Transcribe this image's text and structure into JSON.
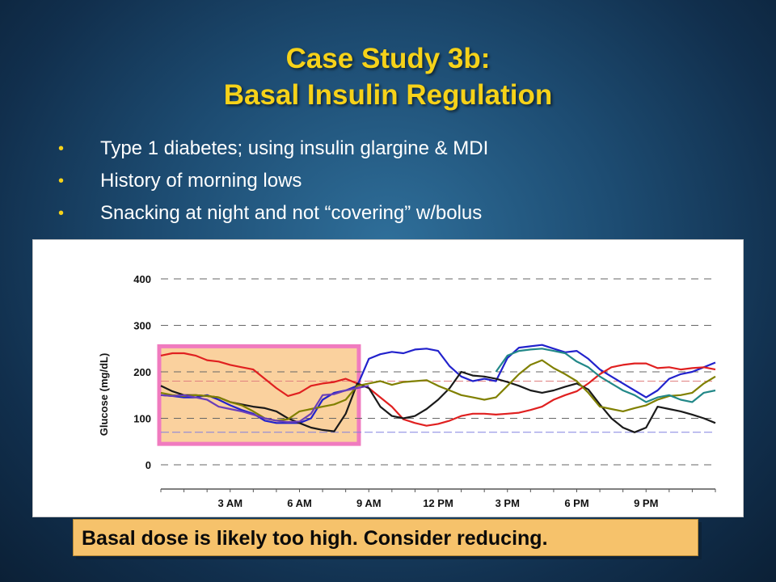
{
  "slide": {
    "title_line1": "Case Study 3b:",
    "title_line2": "Basal Insulin Regulation",
    "bullets": [
      "Type 1 diabetes; using insulin glargine & MDI",
      "History of morning lows",
      "Snacking at night and not “covering” w/bolus"
    ],
    "callout": "Basal dose is likely too high.  Consider reducing.",
    "colors": {
      "title": "#f6d219",
      "callout_bg": "#f6c26b",
      "highlight_box": "#f07bbf",
      "highlight_fill": "#f9c98d"
    }
  },
  "chart_data": {
    "type": "line",
    "ylabel": "Glucose (mg/dL)",
    "xlabel": "",
    "ylim": [
      0,
      400
    ],
    "yticks": [
      0,
      100,
      200,
      300,
      400
    ],
    "xlim": [
      0,
      24
    ],
    "xtick_labels": [
      {
        "x": 3,
        "label": "3 AM"
      },
      {
        "x": 6,
        "label": "6 AM"
      },
      {
        "x": 9,
        "label": "9 AM"
      },
      {
        "x": 12,
        "label": "12 PM"
      },
      {
        "x": 15,
        "label": "3 PM"
      },
      {
        "x": 18,
        "label": "6 PM"
      },
      {
        "x": 21,
        "label": "9 PM"
      }
    ],
    "grid": "horizontal dashed",
    "reference_lines": [
      {
        "y": 70,
        "color": "#8080e0"
      },
      {
        "y": 180,
        "color": "#e08080"
      }
    ],
    "highlight_region": {
      "x_start": 0,
      "x_end": 8.5,
      "y_start": 45,
      "y_end": 255
    },
    "series": [
      {
        "color": "#2222cc",
        "points": [
          [
            0,
            150
          ],
          [
            0.5,
            148
          ],
          [
            1,
            145
          ],
          [
            1.5,
            145
          ],
          [
            2,
            150
          ],
          [
            2.5,
            140
          ],
          [
            3,
            128
          ],
          [
            3.5,
            118
          ],
          [
            4,
            110
          ],
          [
            4.5,
            95
          ],
          [
            5,
            90
          ],
          [
            5.5,
            90
          ],
          [
            6,
            90
          ],
          [
            6.5,
            100
          ],
          [
            7,
            140
          ],
          [
            7.5,
            155
          ],
          [
            8,
            160
          ],
          [
            8.5,
            170
          ],
          [
            9,
            228
          ],
          [
            9.5,
            238
          ],
          [
            10,
            243
          ],
          [
            10.5,
            240
          ],
          [
            11,
            248
          ],
          [
            11.5,
            250
          ],
          [
            12,
            245
          ],
          [
            12.5,
            212
          ],
          [
            13,
            190
          ],
          [
            13.5,
            180
          ],
          [
            14,
            185
          ],
          [
            14.5,
            180
          ],
          [
            15,
            230
          ],
          [
            15.5,
            252
          ],
          [
            16,
            255
          ],
          [
            16.5,
            258
          ],
          [
            17,
            250
          ],
          [
            17.5,
            242
          ],
          [
            18,
            245
          ],
          [
            18.5,
            228
          ],
          [
            19,
            205
          ],
          [
            19.5,
            190
          ],
          [
            20,
            175
          ],
          [
            20.5,
            160
          ],
          [
            21,
            145
          ],
          [
            21.5,
            160
          ],
          [
            22,
            185
          ],
          [
            22.5,
            195
          ],
          [
            23,
            200
          ],
          [
            23.5,
            210
          ],
          [
            24,
            220
          ]
        ]
      },
      {
        "color": "#e02020",
        "points": [
          [
            0,
            235
          ],
          [
            0.5,
            240
          ],
          [
            1,
            240
          ],
          [
            1.5,
            235
          ],
          [
            2,
            225
          ],
          [
            2.5,
            222
          ],
          [
            3,
            215
          ],
          [
            3.5,
            210
          ],
          [
            4,
            205
          ],
          [
            4.5,
            185
          ],
          [
            5,
            165
          ],
          [
            5.5,
            148
          ],
          [
            6,
            155
          ],
          [
            6.5,
            170
          ],
          [
            7,
            175
          ],
          [
            7.5,
            178
          ],
          [
            8,
            185
          ],
          [
            8.5,
            175
          ],
          [
            9,
            165
          ],
          [
            9.5,
            145
          ],
          [
            10,
            125
          ],
          [
            10.5,
            98
          ],
          [
            11,
            90
          ],
          [
            11.5,
            84
          ],
          [
            12,
            88
          ],
          [
            12.5,
            95
          ],
          [
            13,
            105
          ],
          [
            13.5,
            110
          ],
          [
            14,
            110
          ],
          [
            14.5,
            108
          ],
          [
            15,
            110
          ],
          [
            15.5,
            112
          ],
          [
            16,
            118
          ],
          [
            16.5,
            125
          ],
          [
            17,
            140
          ],
          [
            17.5,
            150
          ],
          [
            18,
            158
          ],
          [
            18.5,
            175
          ],
          [
            19,
            195
          ],
          [
            19.5,
            210
          ],
          [
            20,
            215
          ],
          [
            20.5,
            218
          ],
          [
            21,
            218
          ],
          [
            21.5,
            208
          ],
          [
            22,
            210
          ],
          [
            22.5,
            205
          ],
          [
            23,
            208
          ],
          [
            23.5,
            210
          ],
          [
            24,
            205
          ]
        ]
      },
      {
        "color": "#1a1a1a",
        "points": [
          [
            0,
            170
          ],
          [
            0.5,
            158
          ],
          [
            1,
            150
          ],
          [
            1.5,
            150
          ],
          [
            2,
            148
          ],
          [
            2.5,
            145
          ],
          [
            3,
            135
          ],
          [
            3.5,
            130
          ],
          [
            4,
            125
          ],
          [
            4.5,
            122
          ],
          [
            5,
            115
          ],
          [
            5.5,
            100
          ],
          [
            6,
            90
          ],
          [
            6.5,
            80
          ],
          [
            7,
            75
          ],
          [
            7.5,
            72
          ],
          [
            8,
            110
          ],
          [
            8.5,
            175
          ],
          [
            9,
            165
          ],
          [
            9.5,
            125
          ],
          [
            10,
            105
          ],
          [
            10.5,
            100
          ],
          [
            11,
            105
          ],
          [
            11.5,
            120
          ],
          [
            12,
            140
          ],
          [
            12.5,
            165
          ],
          [
            13,
            200
          ],
          [
            13.5,
            192
          ],
          [
            14,
            190
          ],
          [
            14.5,
            185
          ],
          [
            15,
            178
          ],
          [
            15.5,
            170
          ],
          [
            16,
            160
          ],
          [
            16.5,
            155
          ],
          [
            17,
            160
          ],
          [
            17.5,
            168
          ],
          [
            18,
            175
          ],
          [
            18.5,
            162
          ],
          [
            19,
            130
          ],
          [
            19.5,
            100
          ],
          [
            20,
            80
          ],
          [
            20.5,
            70
          ],
          [
            21,
            80
          ],
          [
            21.5,
            125
          ],
          [
            22,
            120
          ],
          [
            22.5,
            115
          ],
          [
            23,
            108
          ],
          [
            23.5,
            100
          ],
          [
            24,
            90
          ]
        ]
      },
      {
        "color": "#808000",
        "points": [
          [
            0,
            155
          ],
          [
            0.5,
            150
          ],
          [
            1,
            148
          ],
          [
            1.5,
            150
          ],
          [
            2,
            148
          ],
          [
            2.5,
            145
          ],
          [
            3,
            135
          ],
          [
            3.5,
            128
          ],
          [
            4,
            115
          ],
          [
            4.5,
            100
          ],
          [
            5,
            95
          ],
          [
            5.5,
            98
          ],
          [
            6,
            115
          ],
          [
            6.5,
            120
          ],
          [
            7,
            125
          ],
          [
            7.5,
            130
          ],
          [
            8,
            140
          ],
          [
            8.5,
            170
          ],
          [
            9,
            175
          ],
          [
            9.5,
            180
          ],
          [
            10,
            172
          ],
          [
            10.5,
            178
          ],
          [
            11,
            180
          ],
          [
            11.5,
            182
          ],
          [
            12,
            170
          ],
          [
            12.5,
            160
          ],
          [
            13,
            150
          ],
          [
            13.5,
            145
          ],
          [
            14,
            140
          ],
          [
            14.5,
            145
          ],
          [
            15,
            170
          ],
          [
            15.5,
            195
          ],
          [
            16,
            215
          ],
          [
            16.5,
            225
          ],
          [
            17,
            208
          ],
          [
            17.5,
            195
          ],
          [
            18,
            180
          ],
          [
            18.5,
            155
          ],
          [
            19,
            125
          ],
          [
            19.5,
            120
          ],
          [
            20,
            115
          ],
          [
            20.5,
            122
          ],
          [
            21,
            128
          ],
          [
            21.5,
            140
          ],
          [
            22,
            148
          ],
          [
            22.5,
            150
          ],
          [
            23,
            155
          ],
          [
            23.5,
            175
          ],
          [
            24,
            190
          ]
        ]
      },
      {
        "color": "#228888",
        "points": [
          [
            14.5,
            200
          ],
          [
            15,
            235
          ],
          [
            15.5,
            245
          ],
          [
            16,
            248
          ],
          [
            16.5,
            250
          ],
          [
            17,
            245
          ],
          [
            17.5,
            240
          ],
          [
            18,
            222
          ],
          [
            18.5,
            210
          ],
          [
            19,
            190
          ],
          [
            19.5,
            175
          ],
          [
            20,
            160
          ],
          [
            20.5,
            150
          ],
          [
            21,
            135
          ],
          [
            21.5,
            145
          ],
          [
            22,
            150
          ],
          [
            22.5,
            140
          ],
          [
            23,
            135
          ],
          [
            23.5,
            155
          ],
          [
            24,
            160
          ]
        ]
      },
      {
        "color": "#6a3fb8",
        "points": [
          [
            0,
            150
          ],
          [
            0.5,
            148
          ],
          [
            1,
            150
          ],
          [
            1.5,
            145
          ],
          [
            2,
            140
          ],
          [
            2.5,
            125
          ],
          [
            3,
            120
          ],
          [
            3.5,
            115
          ],
          [
            4,
            108
          ],
          [
            4.5,
            100
          ],
          [
            5,
            95
          ],
          [
            5.5,
            92
          ],
          [
            6,
            93
          ],
          [
            6.5,
            110
          ],
          [
            7,
            150
          ],
          [
            7.5,
            152
          ],
          [
            8,
            160
          ],
          [
            8.5,
            165
          ],
          [
            9,
            170
          ]
        ]
      }
    ]
  }
}
